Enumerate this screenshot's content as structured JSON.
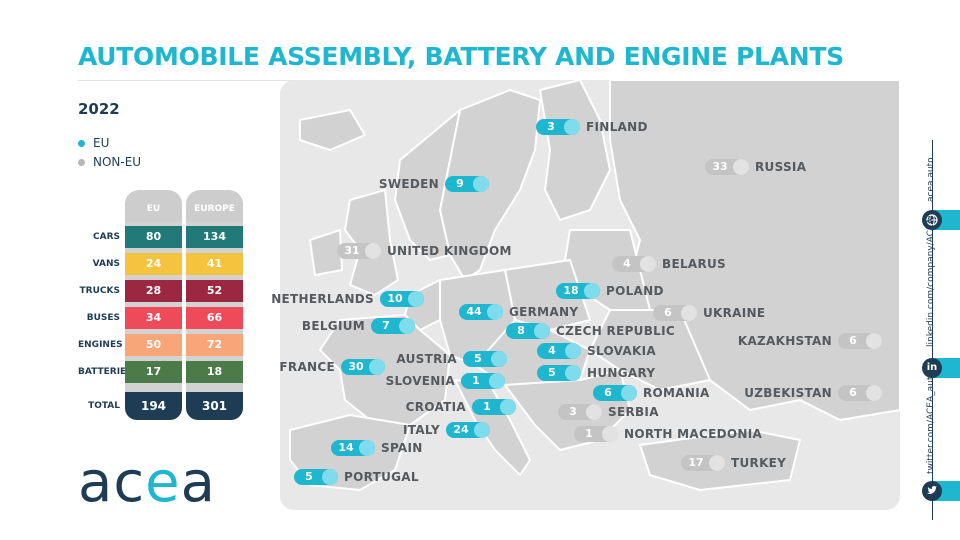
{
  "title": "AUTOMOBILE ASSEMBLY, BATTERY AND ENGINE PLANTS",
  "year": "2022",
  "legend": {
    "eu": "EU",
    "non_eu": "NON-EU"
  },
  "colors": {
    "eu": "#1fb7cf",
    "non_eu": "#c4c4c4",
    "navy": "#1e3c53"
  },
  "table": {
    "col_eu": "EU",
    "col_europe": "EUROPE",
    "rows": [
      {
        "label": "CARS",
        "eu": "80",
        "europe": "134",
        "color": "#217a78"
      },
      {
        "label": "VANS",
        "eu": "24",
        "europe": "41",
        "color": "#f6c33e"
      },
      {
        "label": "TRUCKS",
        "eu": "28",
        "europe": "52",
        "color": "#9b2740"
      },
      {
        "label": "BUSES",
        "eu": "34",
        "europe": "66",
        "color": "#ef4a5a"
      },
      {
        "label": "ENGINES",
        "eu": "50",
        "europe": "72",
        "color": "#f9a57a"
      },
      {
        "label": "BATTERIES",
        "eu": "17",
        "europe": "18",
        "color": "#4a7b48"
      }
    ],
    "total": {
      "label": "TOTAL",
      "eu": "194",
      "europe": "301"
    }
  },
  "logo": {
    "a": "ac",
    "accent": "e",
    "b": "a"
  },
  "countries": [
    {
      "name": "FINLAND",
      "value": "3",
      "eu": true
    },
    {
      "name": "SWEDEN",
      "value": "9",
      "eu": true
    },
    {
      "name": "RUSSIA",
      "value": "33",
      "eu": false
    },
    {
      "name": "UNITED KINGDOM",
      "value": "31",
      "eu": false
    },
    {
      "name": "BELARUS",
      "value": "4",
      "eu": false
    },
    {
      "name": "POLAND",
      "value": "18",
      "eu": true
    },
    {
      "name": "NETHERLANDS",
      "value": "10",
      "eu": true
    },
    {
      "name": "GERMANY",
      "value": "44",
      "eu": true
    },
    {
      "name": "UKRAINE",
      "value": "6",
      "eu": false
    },
    {
      "name": "BELGIUM",
      "value": "7",
      "eu": true
    },
    {
      "name": "CZECH REPUBLIC",
      "value": "8",
      "eu": true
    },
    {
      "name": "KAZAKHSTAN",
      "value": "6",
      "eu": false
    },
    {
      "name": "SLOVAKIA",
      "value": "4",
      "eu": true
    },
    {
      "name": "AUSTRIA",
      "value": "5",
      "eu": true
    },
    {
      "name": "FRANCE",
      "value": "30",
      "eu": true
    },
    {
      "name": "HUNGARY",
      "value": "5",
      "eu": true
    },
    {
      "name": "SLOVENIA",
      "value": "1",
      "eu": true
    },
    {
      "name": "ROMANIA",
      "value": "6",
      "eu": true
    },
    {
      "name": "UZBEKISTAN",
      "value": "6",
      "eu": false
    },
    {
      "name": "CROATIA",
      "value": "1",
      "eu": true
    },
    {
      "name": "SERBIA",
      "value": "3",
      "eu": false
    },
    {
      "name": "ITALY",
      "value": "24",
      "eu": true
    },
    {
      "name": "NORTH MACEDONIA",
      "value": "1",
      "eu": false
    },
    {
      "name": "SPAIN",
      "value": "14",
      "eu": true
    },
    {
      "name": "TURKEY",
      "value": "17",
      "eu": false
    },
    {
      "name": "PORTUGAL",
      "value": "5",
      "eu": true
    }
  ],
  "social": {
    "web": "acea.auto",
    "linkedin": "linkedin.com/company/ACEA/",
    "twitter": "twitter.com/ACEA_auto",
    "web_icon": "globe-icon",
    "linkedin_icon": "linkedin-icon",
    "twitter_icon": "twitter-icon",
    "linkedin_glyph": "in"
  }
}
